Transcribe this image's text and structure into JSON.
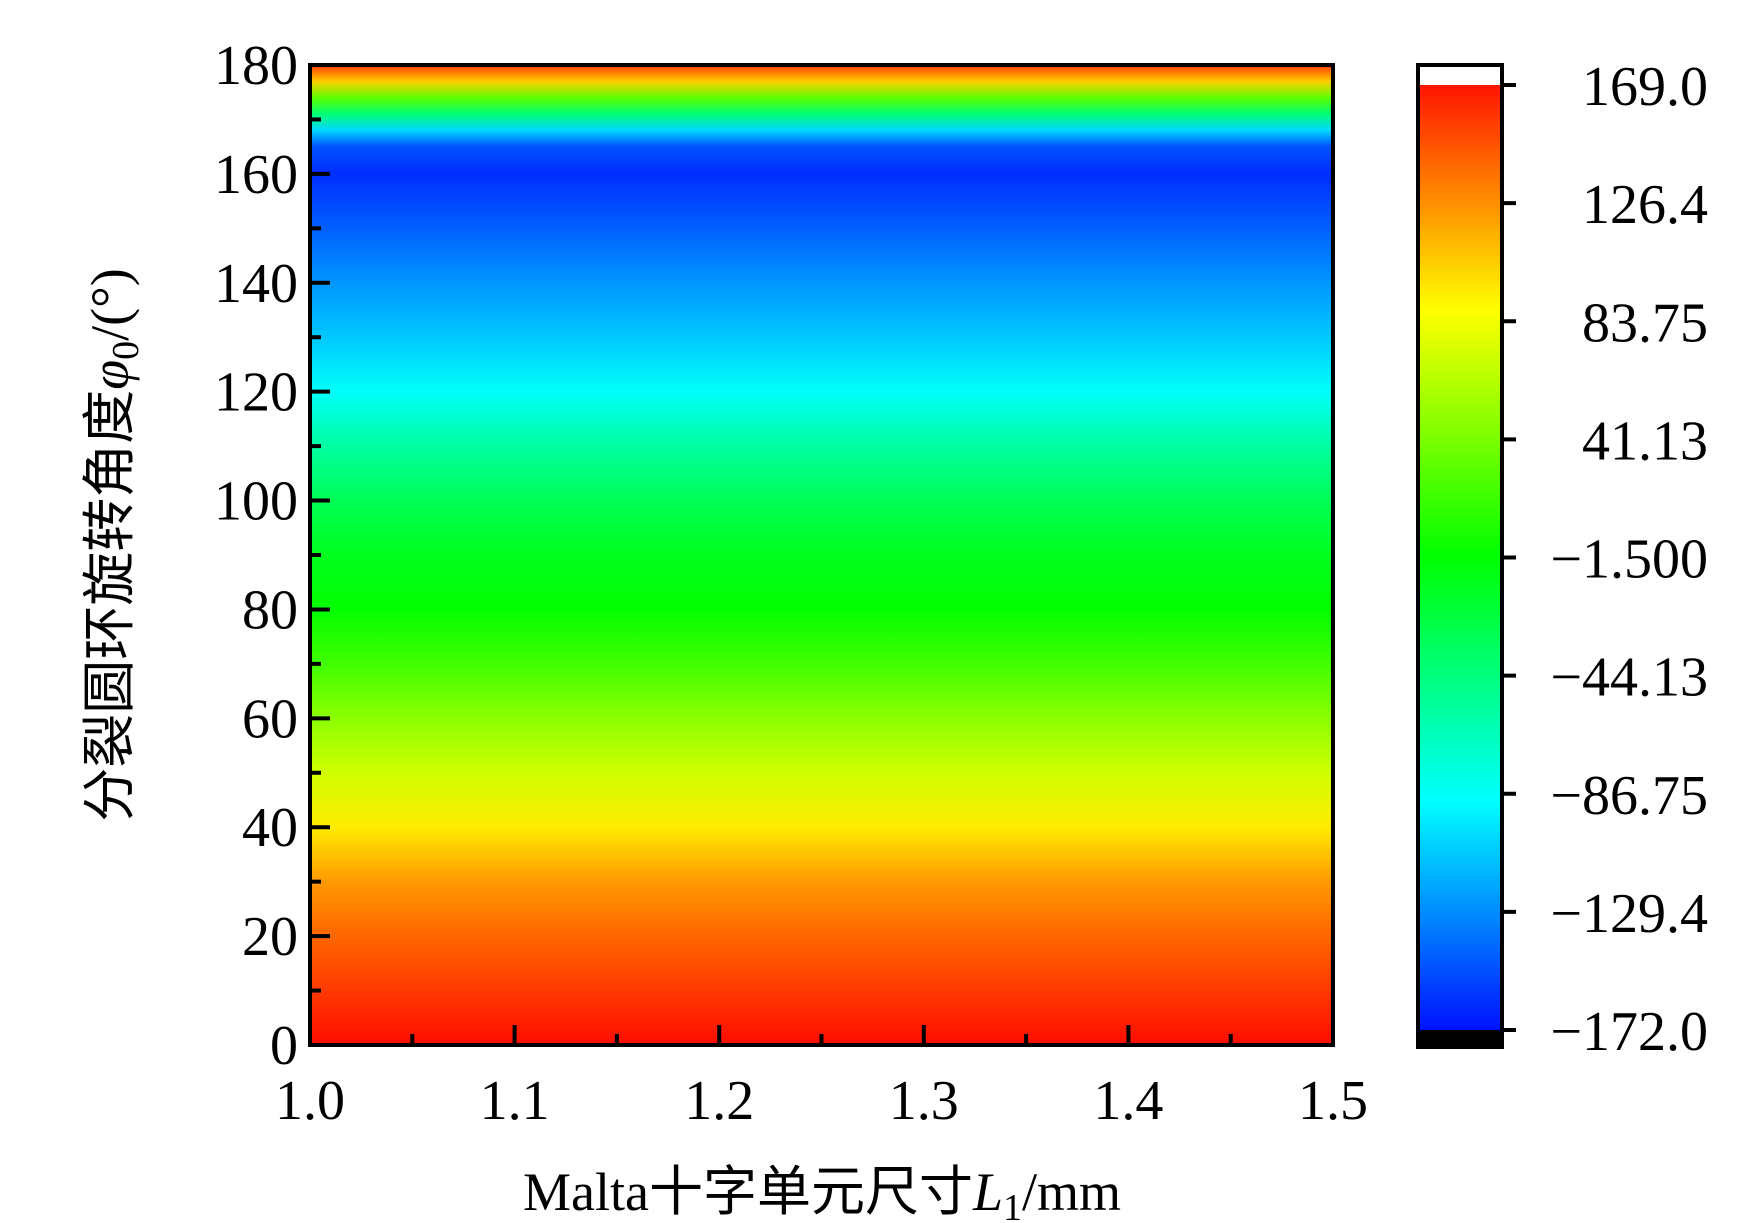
{
  "chart_data": {
    "type": "heatmap",
    "title": "",
    "xlabel": {
      "prefix": "Malta十字单元尺寸",
      "var": "L",
      "sub": "1",
      "suffix": "/mm"
    },
    "ylabel": {
      "prefix": "分裂圆环旋转角度",
      "var": "φ",
      "sub": "0",
      "suffix": "/(°)"
    },
    "xlim": [
      1.0,
      1.5
    ],
    "ylim": [
      0,
      180
    ],
    "x_ticks": [
      "1.0",
      "1.1",
      "1.2",
      "1.3",
      "1.4",
      "1.5"
    ],
    "y_ticks": [
      "0",
      "20",
      "40",
      "60",
      "80",
      "100",
      "120",
      "140",
      "160",
      "180"
    ],
    "colorbar": {
      "range": [
        -172.0,
        169.0
      ],
      "tick_labels": [
        "169.0",
        "126.4",
        "83.75",
        "41.13",
        "−1.500",
        "−44.13",
        "−86.75",
        "−129.4",
        "−172.0"
      ],
      "colormap": [
        "#000000",
        "#0000ff",
        "#00ffff",
        "#00ff00",
        "#ffff00",
        "#ff0000",
        "#ffffff"
      ]
    },
    "z_profile_vs_y": [
      {
        "y": 0,
        "z": 165
      },
      {
        "y": 10,
        "z": 150
      },
      {
        "y": 20,
        "z": 135
      },
      {
        "y": 30,
        "z": 118
      },
      {
        "y": 40,
        "z": 90
      },
      {
        "y": 50,
        "z": 68
      },
      {
        "y": 60,
        "z": 45
      },
      {
        "y": 70,
        "z": 20
      },
      {
        "y": 80,
        "z": 0
      },
      {
        "y": 90,
        "z": -12
      },
      {
        "y": 100,
        "z": -30
      },
      {
        "y": 110,
        "z": -55
      },
      {
        "y": 120,
        "z": -85
      },
      {
        "y": 130,
        "z": -105
      },
      {
        "y": 140,
        "z": -122
      },
      {
        "y": 150,
        "z": -140
      },
      {
        "y": 160,
        "z": -157
      },
      {
        "y": 165,
        "z": -145
      },
      {
        "y": 168,
        "z": -100
      },
      {
        "y": 171,
        "z": -40
      },
      {
        "y": 174,
        "z": 30
      },
      {
        "y": 177,
        "z": 100
      },
      {
        "y": 180,
        "z": 150
      }
    ]
  }
}
